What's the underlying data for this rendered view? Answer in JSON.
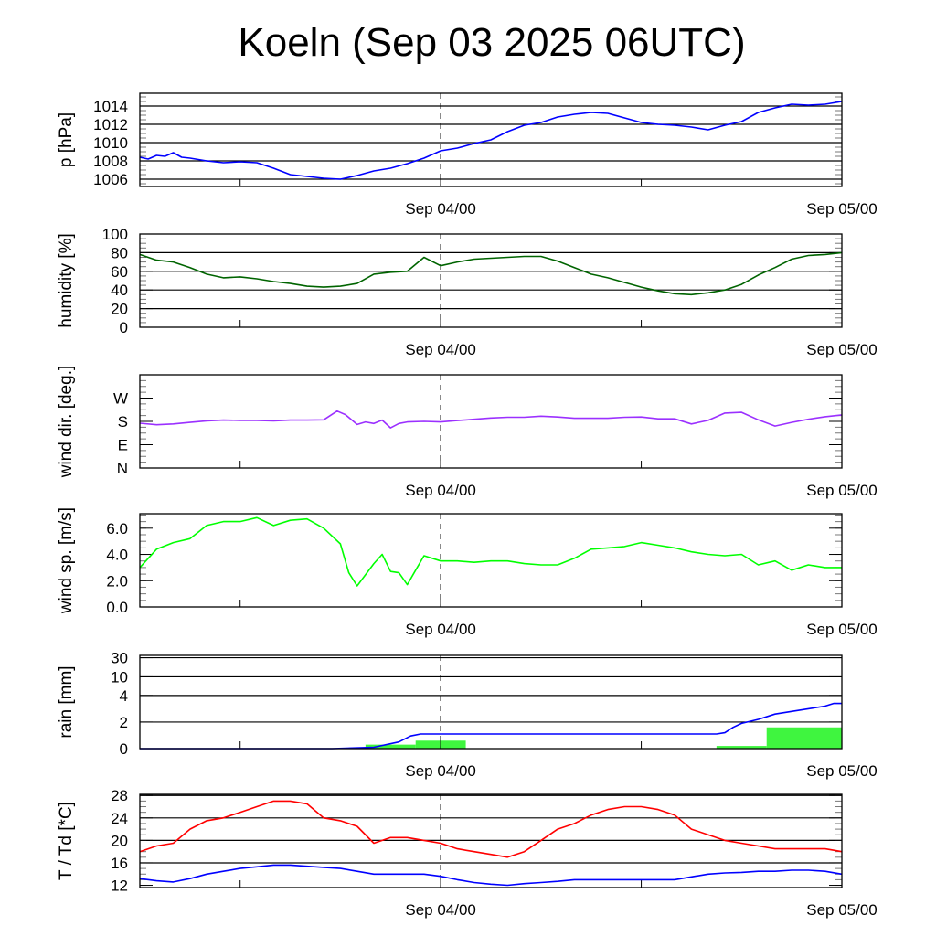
{
  "title": "Koeln (Sep 03 2025 06UTC)",
  "x_axis": {
    "unit": "hours since Sep 03 06UTC",
    "range": [
      0,
      42
    ],
    "labels": [
      {
        "h": 18,
        "text": "Sep 04/00"
      },
      {
        "h": 42,
        "text": "Sep 05/00"
      }
    ],
    "minor_ticks_h": [
      6,
      30
    ],
    "dashed_marker_h": 18
  },
  "chart_data": [
    {
      "type": "line",
      "id": "pressure",
      "ylabel": "p [hPa]",
      "ylim": [
        1005.2,
        1015.4
      ],
      "yticks": [
        1006,
        1008,
        1010,
        1012,
        1014
      ],
      "ytick_labels": [
        "1006",
        "1008",
        "1010",
        "1012",
        "1014"
      ],
      "grid": [
        1006,
        1008,
        1010,
        1012,
        1014
      ],
      "series": [
        {
          "name": "pressure",
          "color": "#0000ff",
          "x": [
            0,
            0.5,
            1,
            1.5,
            2,
            2.5,
            3,
            4,
            5,
            6,
            7,
            8,
            9,
            10,
            11,
            12,
            13,
            14,
            15,
            16,
            17,
            18,
            19,
            20,
            21,
            22,
            23,
            24,
            25,
            26,
            27,
            28,
            29,
            30,
            31,
            32,
            33,
            34,
            35,
            36,
            37,
            38,
            39,
            40,
            41,
            42
          ],
          "y": [
            1008.4,
            1008.2,
            1008.6,
            1008.5,
            1008.9,
            1008.4,
            1008.3,
            1008.0,
            1007.8,
            1007.9,
            1007.8,
            1007.2,
            1006.5,
            1006.3,
            1006.1,
            1006.0,
            1006.4,
            1006.9,
            1007.2,
            1007.7,
            1008.3,
            1009.1,
            1009.4,
            1009.9,
            1010.3,
            1011.2,
            1011.9,
            1012.2,
            1012.8,
            1013.1,
            1013.3,
            1013.2,
            1012.7,
            1012.2,
            1012.0,
            1011.9,
            1011.7,
            1011.4,
            1011.9,
            1012.3,
            1013.3,
            1013.8,
            1014.2,
            1014.1,
            1014.2,
            1014.5
          ]
        }
      ]
    },
    {
      "type": "line",
      "id": "humidity",
      "ylabel": "humidity [%]",
      "ylim": [
        0,
        100
      ],
      "yticks": [
        0,
        20,
        40,
        60,
        80,
        100
      ],
      "ytick_labels": [
        "0",
        "20",
        "40",
        "60",
        "80",
        "100"
      ],
      "grid": [
        20,
        40,
        60,
        80
      ],
      "series": [
        {
          "name": "humidity",
          "color": "#006400",
          "x": [
            0,
            1,
            2,
            3,
            4,
            5,
            6,
            7,
            8,
            9,
            10,
            11,
            12,
            13,
            14,
            15,
            16,
            17,
            18,
            19,
            20,
            21,
            22,
            23,
            24,
            25,
            26,
            27,
            28,
            29,
            30,
            31,
            32,
            33,
            34,
            35,
            36,
            37,
            38,
            39,
            40,
            41,
            42
          ],
          "y": [
            78,
            72,
            70,
            64,
            57,
            53,
            54,
            52,
            49,
            47,
            44,
            43,
            44,
            47,
            57,
            59,
            60,
            75,
            66,
            70,
            73,
            74,
            75,
            76,
            76,
            71,
            64,
            57,
            53,
            48,
            43,
            39,
            36,
            35,
            37,
            40,
            46,
            56,
            64,
            73,
            77,
            78,
            80
          ]
        }
      ]
    },
    {
      "type": "line",
      "id": "wind_direction",
      "ylabel": "wind dir. [deg.]",
      "ylim": [
        0,
        360
      ],
      "yticks": [
        0,
        90,
        180,
        270
      ],
      "ytick_labels": [
        "N",
        "E",
        "S",
        "W"
      ],
      "grid": [],
      "series": [
        {
          "name": "wind direction",
          "color": "#9b30ff",
          "x": [
            0,
            1,
            2,
            3,
            4,
            5,
            6,
            7,
            8,
            9,
            10,
            11,
            11.8,
            12.3,
            13,
            13.5,
            14,
            14.5,
            15,
            15.5,
            16,
            17,
            18,
            19,
            20,
            21,
            22,
            23,
            24,
            25,
            26,
            27,
            28,
            29,
            30,
            31,
            32,
            33,
            34,
            35,
            36,
            37,
            38,
            39,
            40,
            41,
            42
          ],
          "y": [
            173,
            167,
            170,
            176,
            182,
            185,
            184,
            184,
            182,
            185,
            185,
            186,
            220,
            206,
            168,
            178,
            172,
            185,
            155,
            172,
            178,
            180,
            178,
            183,
            188,
            193,
            196,
            196,
            200,
            197,
            192,
            192,
            192,
            196,
            197,
            190,
            190,
            170,
            184,
            212,
            215,
            186,
            162,
            176,
            188,
            198,
            205
          ]
        }
      ]
    },
    {
      "type": "line",
      "id": "wind_speed",
      "ylabel": "wind sp. [m/s]",
      "ylim": [
        0,
        7.1
      ],
      "yticks": [
        0,
        2,
        4,
        6
      ],
      "ytick_labels": [
        "0.0",
        "2.0",
        "4.0",
        "6.0"
      ],
      "grid": [],
      "series": [
        {
          "name": "wind speed",
          "color": "#00ff00",
          "x": [
            0,
            1,
            2,
            3,
            4,
            5,
            6,
            7,
            8,
            9,
            10,
            11,
            12,
            12.5,
            13,
            14,
            14.5,
            15,
            15.5,
            16,
            16.5,
            17,
            18,
            19,
            20,
            21,
            22,
            23,
            24,
            25,
            26,
            27,
            28,
            29,
            30,
            31,
            32,
            33,
            34,
            35,
            36,
            37,
            38,
            39,
            40,
            41,
            42
          ],
          "y": [
            3.0,
            4.4,
            4.9,
            5.2,
            6.2,
            6.5,
            6.5,
            6.8,
            6.2,
            6.6,
            6.7,
            6.0,
            4.8,
            2.6,
            1.6,
            3.3,
            4.0,
            2.7,
            2.6,
            1.7,
            2.8,
            3.9,
            3.5,
            3.5,
            3.4,
            3.5,
            3.5,
            3.3,
            3.2,
            3.2,
            3.7,
            4.4,
            4.5,
            4.6,
            4.9,
            4.7,
            4.5,
            4.2,
            4.0,
            3.9,
            4.0,
            3.2,
            3.5,
            2.8,
            3.2,
            3.0,
            3.0
          ]
        }
      ]
    },
    {
      "type": "bar+line",
      "id": "rain",
      "ylabel": "rain [mm]",
      "scale": "piecewise",
      "yticks": [
        0,
        2,
        4,
        10,
        30
      ],
      "ytick_labels": [
        "0",
        "2",
        "4",
        "10",
        "30"
      ],
      "grid": [
        2,
        4,
        10,
        30
      ],
      "bars": {
        "name": "rain per 3h",
        "color": "#3ff53f",
        "start_h": [
          13.5,
          16.5,
          34.5,
          37.5
        ],
        "end_h": [
          16.5,
          19.5,
          37.5,
          42
        ],
        "values": [
          0.3,
          0.6,
          0.2,
          1.6
        ]
      },
      "series": [
        {
          "name": "accumulated rain",
          "color": "#0000ff",
          "x": [
            0,
            11.5,
            14,
            15.5,
            16.2,
            16.8,
            18,
            24,
            30,
            34,
            34.5,
            35,
            35.5,
            36,
            37,
            38,
            39,
            40,
            41,
            41.5,
            42
          ],
          "y": [
            0,
            0,
            0.1,
            0.5,
            0.95,
            1.1,
            1.1,
            1.1,
            1.1,
            1.1,
            1.1,
            1.2,
            1.6,
            1.9,
            2.2,
            2.6,
            2.8,
            3.0,
            3.2,
            3.4,
            3.4
          ]
        }
      ]
    },
    {
      "type": "line",
      "id": "temperature",
      "ylabel": "T / Td [*C]",
      "ylim": [
        11.6,
        28.2
      ],
      "yticks": [
        12,
        16,
        20,
        24,
        28
      ],
      "ytick_labels": [
        "12",
        "16",
        "20",
        "24",
        "28"
      ],
      "grid": [
        16,
        20,
        24,
        28
      ],
      "series": [
        {
          "name": "T",
          "color": "#ff0000",
          "x": [
            0,
            1,
            2,
            3,
            4,
            5,
            6,
            7,
            8,
            9,
            10,
            11,
            12,
            13,
            14,
            15,
            16,
            17,
            18,
            19,
            20,
            21,
            22,
            23,
            24,
            25,
            26,
            27,
            28,
            29,
            30,
            31,
            32,
            33,
            34,
            35,
            36,
            37,
            38,
            39,
            40,
            41,
            42
          ],
          "y": [
            18.0,
            19.0,
            19.5,
            22.0,
            23.5,
            24.0,
            25.0,
            26.0,
            27.0,
            27.0,
            26.5,
            24.0,
            23.5,
            22.5,
            19.5,
            20.5,
            20.5,
            20.0,
            19.5,
            18.5,
            18.0,
            17.5,
            17.0,
            18.0,
            20.0,
            22.0,
            23.0,
            24.5,
            25.5,
            26.0,
            26.0,
            25.5,
            24.5,
            22.0,
            21.0,
            20.0,
            19.5,
            19.0,
            18.5,
            18.5,
            18.5,
            18.5,
            18.0
          ]
        },
        {
          "name": "Td",
          "color": "#0000ff",
          "x": [
            0,
            1,
            2,
            3,
            4,
            5,
            6,
            7,
            8,
            9,
            10,
            11,
            12,
            13,
            14,
            15,
            16,
            17,
            18,
            19,
            20,
            21,
            22,
            23,
            24,
            25,
            26,
            27,
            28,
            29,
            30,
            31,
            32,
            33,
            34,
            35,
            36,
            37,
            38,
            39,
            40,
            41,
            42
          ],
          "y": [
            13.2,
            12.8,
            12.6,
            13.2,
            14.0,
            14.5,
            15.0,
            15.3,
            15.6,
            15.6,
            15.4,
            15.2,
            15.0,
            14.5,
            14.0,
            14.0,
            14.0,
            14.0,
            13.6,
            13.0,
            12.5,
            12.2,
            12.0,
            12.3,
            12.5,
            12.7,
            13.0,
            13.0,
            13.0,
            13.0,
            13.0,
            13.0,
            13.0,
            13.5,
            14.0,
            14.2,
            14.3,
            14.5,
            14.5,
            14.7,
            14.7,
            14.5,
            14.0
          ]
        }
      ]
    }
  ]
}
